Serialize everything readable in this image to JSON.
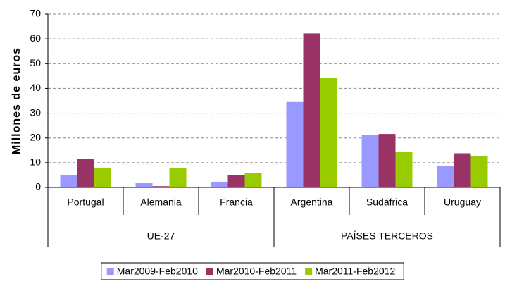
{
  "chart_data": {
    "type": "bar",
    "ylabel": "Millones de euros",
    "groups": [
      {
        "label": "UE-27",
        "categories": [
          "Portugal",
          "Alemania",
          "Francia"
        ]
      },
      {
        "label": "PAÍSES TERCEROS",
        "categories": [
          "Argentina",
          "Sudáfrica",
          "Uruguay"
        ]
      }
    ],
    "series": [
      {
        "name": "Mar2009-Feb2010",
        "color": "#9999ff",
        "values": [
          5,
          1.8,
          2.3,
          34.5,
          21.3,
          8.6
        ]
      },
      {
        "name": "Mar2010-Feb2011",
        "color": "#993366",
        "values": [
          11.5,
          0.5,
          5,
          62.2,
          21.6,
          13.8
        ]
      },
      {
        "name": "Mar2011-Feb2012",
        "color": "#99cc00",
        "values": [
          8,
          7.7,
          5.9,
          44.3,
          14.5,
          12.6
        ]
      }
    ],
    "ylim": [
      0,
      70
    ],
    "yticks": [
      0,
      10,
      20,
      30,
      40,
      50,
      60,
      70
    ],
    "grid": true,
    "legend": "bottom"
  }
}
